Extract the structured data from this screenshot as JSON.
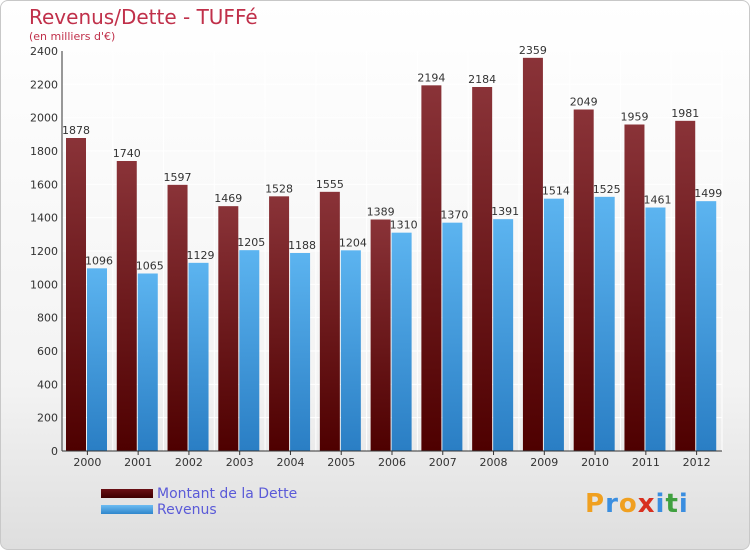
{
  "chart_data": {
    "type": "bar",
    "title": "Revenus/Dette - TUFFé",
    "subtitle": "(en milliers d'€)",
    "categories": [
      "2000",
      "2001",
      "2002",
      "2003",
      "2004",
      "2005",
      "2006",
      "2007",
      "2008",
      "2009",
      "2010",
      "2011",
      "2012"
    ],
    "series": [
      {
        "name": "Montant de la Dette",
        "color": "#7a1f24",
        "values": [
          1878,
          1740,
          1597,
          1469,
          1528,
          1555,
          1389,
          2194,
          2184,
          2359,
          2049,
          1959,
          1981
        ]
      },
      {
        "name": "Revenus",
        "color": "#4ea6e6",
        "values": [
          1096,
          1065,
          1129,
          1205,
          1188,
          1204,
          1310,
          1370,
          1391,
          1514,
          1525,
          1461,
          1499
        ]
      }
    ],
    "ylim": [
      0,
      2400
    ],
    "yticks": [
      0,
      200,
      400,
      600,
      800,
      1000,
      1200,
      1400,
      1600,
      1800,
      2000,
      2200,
      2400
    ],
    "grid": true,
    "legend_position": "bottom-left"
  },
  "logo": {
    "text": "Proxiti",
    "letters": [
      "P",
      "r",
      "o",
      "x",
      "i",
      "t",
      "i"
    ],
    "colors": [
      "#f0a020",
      "#3a8ee0",
      "#f0a020",
      "#d83020",
      "#3a8ee0",
      "#40a040",
      "#3a8ee0"
    ]
  }
}
